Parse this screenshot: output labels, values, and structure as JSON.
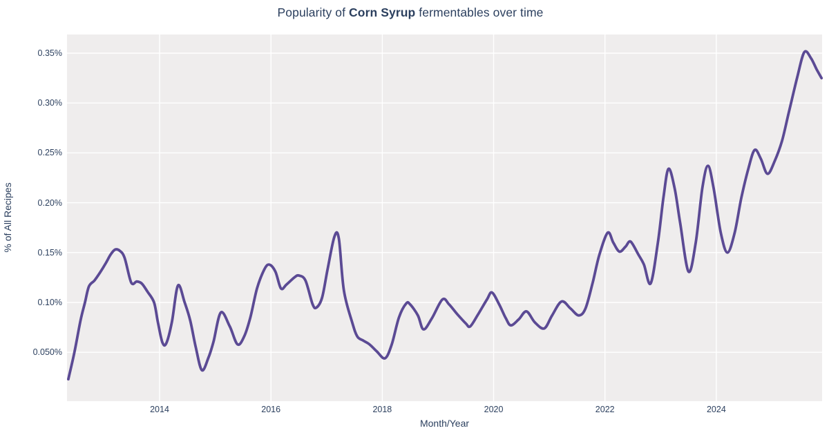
{
  "figure": {
    "title": {
      "prefix": "Popularity of ",
      "highlight": "Corn Syrup",
      "suffix": " fermentables over time"
    }
  },
  "chart_data": {
    "type": "line",
    "title": "Popularity of Corn Syrup fermentables over time",
    "xlabel": "Month/Year",
    "ylabel": "% of All Recipes",
    "grid": true,
    "legend": false,
    "x_range": [
      2012.337,
      2025.9
    ],
    "y_range": [
      0.001,
      0.3687
    ],
    "x_ticks": [
      {
        "value": 2014,
        "label": "2014"
      },
      {
        "value": 2016,
        "label": "2016"
      },
      {
        "value": 2018,
        "label": "2018"
      },
      {
        "value": 2020,
        "label": "2020"
      },
      {
        "value": 2022,
        "label": "2022"
      },
      {
        "value": 2024,
        "label": "2024"
      }
    ],
    "y_ticks": [
      {
        "value": 0.05,
        "label": "0.050%"
      },
      {
        "value": 0.1,
        "label": "0.10%"
      },
      {
        "value": 0.15,
        "label": "0.15%"
      },
      {
        "value": 0.2,
        "label": "0.20%"
      },
      {
        "value": 0.25,
        "label": "0.25%"
      },
      {
        "value": 0.3,
        "label": "0.30%"
      },
      {
        "value": 0.35,
        "label": "0.35%"
      }
    ],
    "colors": {
      "line": "#5b4a94",
      "plot_background": "#efeded",
      "grid": "#ffffff",
      "text": "#2b3f5e"
    },
    "series": [
      {
        "name": "Corn Syrup",
        "x": [
          2012.36,
          2012.47,
          2012.58,
          2012.66,
          2012.73,
          2012.83,
          2012.93,
          2013.03,
          2013.12,
          2013.2,
          2013.28,
          2013.37,
          2013.49,
          2013.59,
          2013.68,
          2013.78,
          2013.9,
          2013.97,
          2014.05,
          2014.12,
          2014.22,
          2014.33,
          2014.45,
          2014.55,
          2014.65,
          2014.76,
          2014.88,
          2014.97,
          2015.1,
          2015.26,
          2015.4,
          2015.52,
          2015.63,
          2015.75,
          2015.88,
          2015.97,
          2016.08,
          2016.18,
          2016.28,
          2016.42,
          2016.5,
          2016.62,
          2016.75,
          2016.82,
          2016.92,
          2017.02,
          2017.14,
          2017.22,
          2017.31,
          2017.46,
          2017.55,
          2017.65,
          2017.77,
          2017.9,
          2018.05,
          2018.17,
          2018.3,
          2018.43,
          2018.5,
          2018.64,
          2018.74,
          2018.89,
          2019.08,
          2019.2,
          2019.35,
          2019.5,
          2019.58,
          2019.72,
          2019.88,
          2019.97,
          2020.1,
          2020.22,
          2020.31,
          2020.45,
          2020.59,
          2020.74,
          2020.91,
          2021.05,
          2021.22,
          2021.38,
          2021.53,
          2021.65,
          2021.78,
          2021.9,
          2022.05,
          2022.15,
          2022.26,
          2022.37,
          2022.46,
          2022.6,
          2022.7,
          2022.82,
          2022.95,
          2023.05,
          2023.14,
          2023.25,
          2023.35,
          2023.5,
          2023.63,
          2023.75,
          2023.85,
          2023.95,
          2024.08,
          2024.2,
          2024.33,
          2024.45,
          2024.58,
          2024.69,
          2024.8,
          2024.92,
          2025.05,
          2025.18,
          2025.3,
          2025.45,
          2025.58,
          2025.7,
          2025.8,
          2025.89
        ],
        "y": [
          0.023,
          0.05,
          0.082,
          0.1,
          0.116,
          0.122,
          0.13,
          0.139,
          0.148,
          0.153,
          0.152,
          0.145,
          0.12,
          0.121,
          0.119,
          0.111,
          0.1,
          0.08,
          0.06,
          0.059,
          0.08,
          0.117,
          0.1,
          0.082,
          0.055,
          0.032,
          0.045,
          0.061,
          0.09,
          0.076,
          0.058,
          0.066,
          0.085,
          0.114,
          0.133,
          0.138,
          0.131,
          0.114,
          0.118,
          0.125,
          0.127,
          0.122,
          0.098,
          0.095,
          0.105,
          0.134,
          0.166,
          0.164,
          0.112,
          0.08,
          0.066,
          0.062,
          0.058,
          0.051,
          0.044,
          0.058,
          0.085,
          0.099,
          0.098,
          0.087,
          0.073,
          0.084,
          0.103,
          0.098,
          0.088,
          0.079,
          0.076,
          0.088,
          0.103,
          0.11,
          0.098,
          0.084,
          0.077,
          0.083,
          0.091,
          0.08,
          0.074,
          0.087,
          0.101,
          0.094,
          0.087,
          0.094,
          0.12,
          0.148,
          0.17,
          0.16,
          0.151,
          0.156,
          0.161,
          0.148,
          0.138,
          0.119,
          0.16,
          0.205,
          0.234,
          0.215,
          0.18,
          0.131,
          0.16,
          0.215,
          0.237,
          0.215,
          0.17,
          0.15,
          0.17,
          0.205,
          0.235,
          0.253,
          0.244,
          0.229,
          0.242,
          0.262,
          0.29,
          0.325,
          0.351,
          0.345,
          0.334,
          0.325
        ]
      }
    ]
  }
}
